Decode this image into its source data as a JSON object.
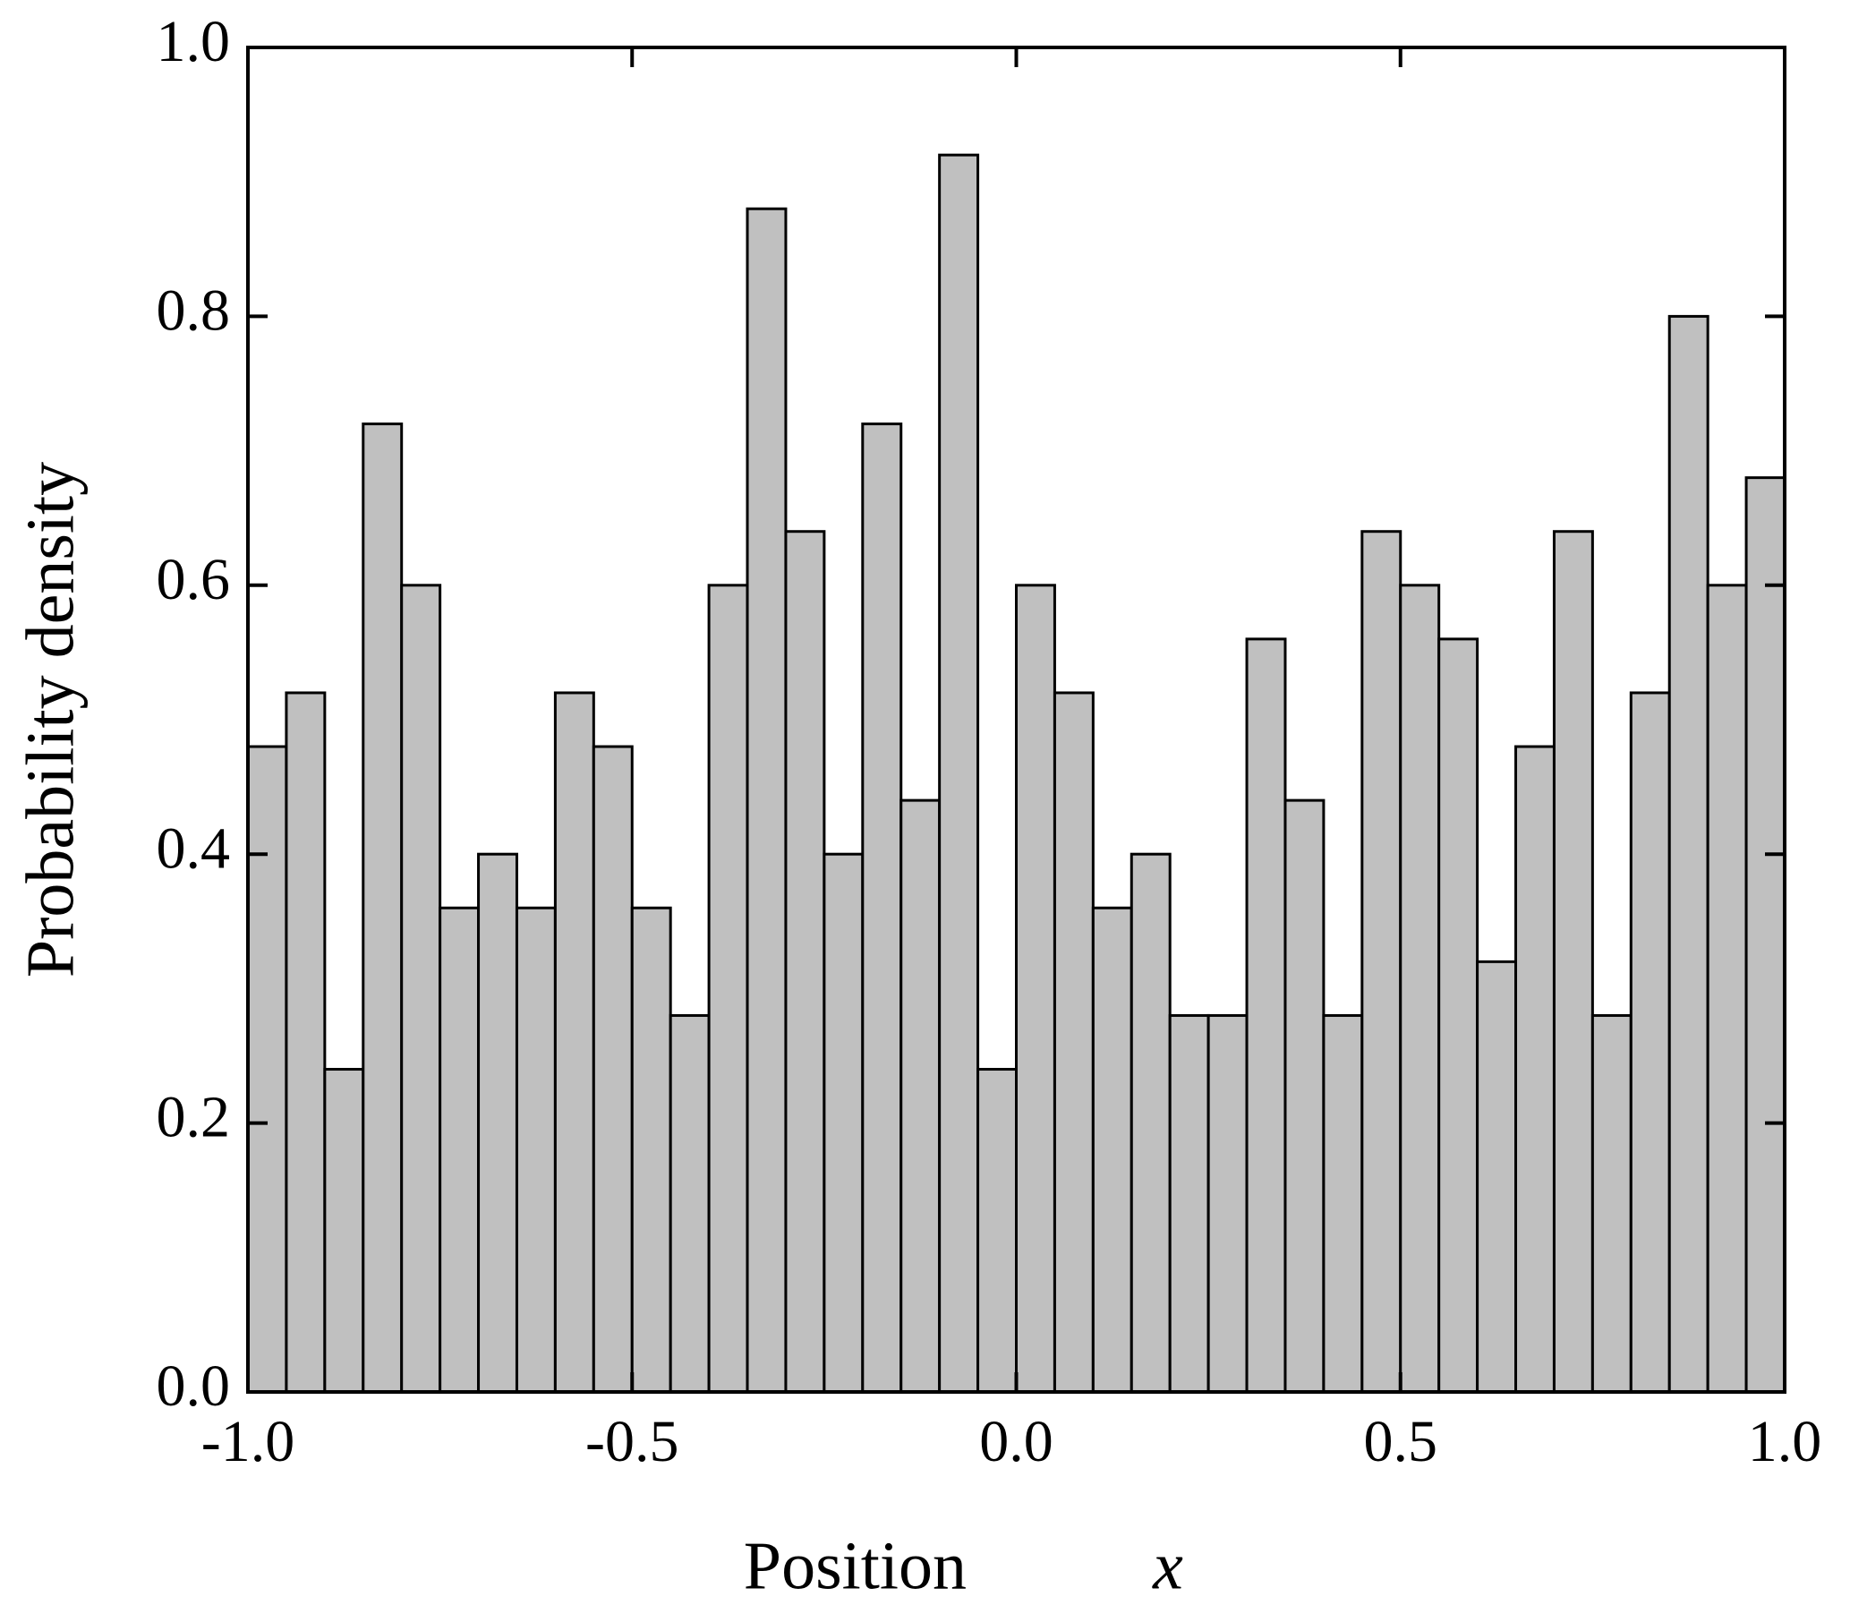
{
  "chart_data": {
    "type": "histogram",
    "xlabel": "Position",
    "xlabel_var": "x",
    "ylabel": "Probability density",
    "bins": [
      -1.0,
      -0.95,
      -0.9,
      -0.85,
      -0.8,
      -0.75,
      -0.7,
      -0.65,
      -0.6,
      -0.55,
      -0.5,
      -0.45,
      -0.4,
      -0.35,
      -0.3,
      -0.25,
      -0.2,
      -0.15,
      -0.1,
      -0.05,
      0.0,
      0.05,
      0.1,
      0.15,
      0.2,
      0.25,
      0.3,
      0.35,
      0.4,
      0.45,
      0.5,
      0.55,
      0.6,
      0.65,
      0.7,
      0.75,
      0.8,
      0.85,
      0.9,
      0.95,
      1.0
    ],
    "values": [
      0.48,
      0.52,
      0.24,
      0.72,
      0.6,
      0.36,
      0.4,
      0.36,
      0.52,
      0.48,
      0.36,
      0.28,
      0.6,
      0.88,
      0.64,
      0.4,
      0.72,
      0.44,
      0.92,
      0.24,
      0.6,
      0.52,
      0.36,
      0.4,
      0.28,
      0.28,
      0.56,
      0.44,
      0.28,
      0.64,
      0.6,
      0.56,
      0.32,
      0.48,
      0.64,
      0.28,
      0.52,
      0.8,
      0.6,
      0.68
    ],
    "color": "#c0c0c0",
    "xlim": [
      -1.0,
      1.0
    ],
    "xticks": [
      {
        "value": -1.0,
        "label": "-1.0"
      },
      -0.5,
      {
        "value": 0.0,
        "label": "0.0"
      },
      0.5,
      {
        "value": 1.0,
        "label": "1.0"
      }
    ],
    "ylim": [
      0.0,
      1.0
    ],
    "yticks": [
      {
        "value": 0.0,
        "label": "0.0"
      },
      0.2,
      0.4,
      0.6,
      0.8,
      {
        "value": 1.0,
        "label": "1.0"
      }
    ]
  }
}
